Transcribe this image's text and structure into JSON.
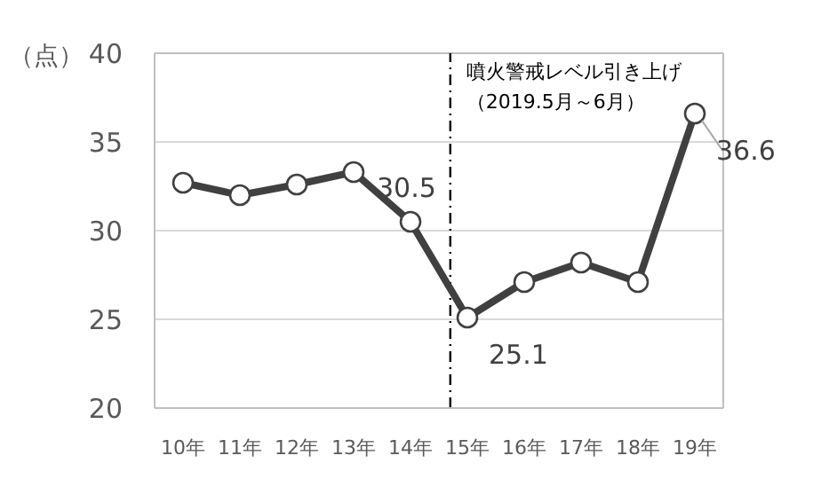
{
  "chart_data": {
    "type": "line",
    "ylabel": "（点）",
    "categories": [
      "10年",
      "11年",
      "12年",
      "13年",
      "14年",
      "15年",
      "16年",
      "17年",
      "18年",
      "19年"
    ],
    "series": [
      {
        "color": "#404040",
        "values": [
          32.7,
          32.0,
          32.6,
          33.3,
          30.5,
          25.1,
          27.1,
          28.2,
          27.1,
          36.6
        ],
        "value_labels": [
          null,
          null,
          null,
          null,
          "30.5",
          "25.1",
          null,
          null,
          null,
          "36.6"
        ]
      }
    ],
    "ylim": [
      20,
      40
    ],
    "yticks": [
      20,
      25,
      30,
      35,
      40
    ],
    "grid": "y",
    "marker": "circle",
    "line_style": "solid",
    "ref_lines": [
      {
        "axis": "x",
        "value": "15年",
        "label": "噴火警戒レベル引き上げ（2019.5月～6月）",
        "color": "#000000",
        "line_style": "dashdot"
      }
    ]
  }
}
